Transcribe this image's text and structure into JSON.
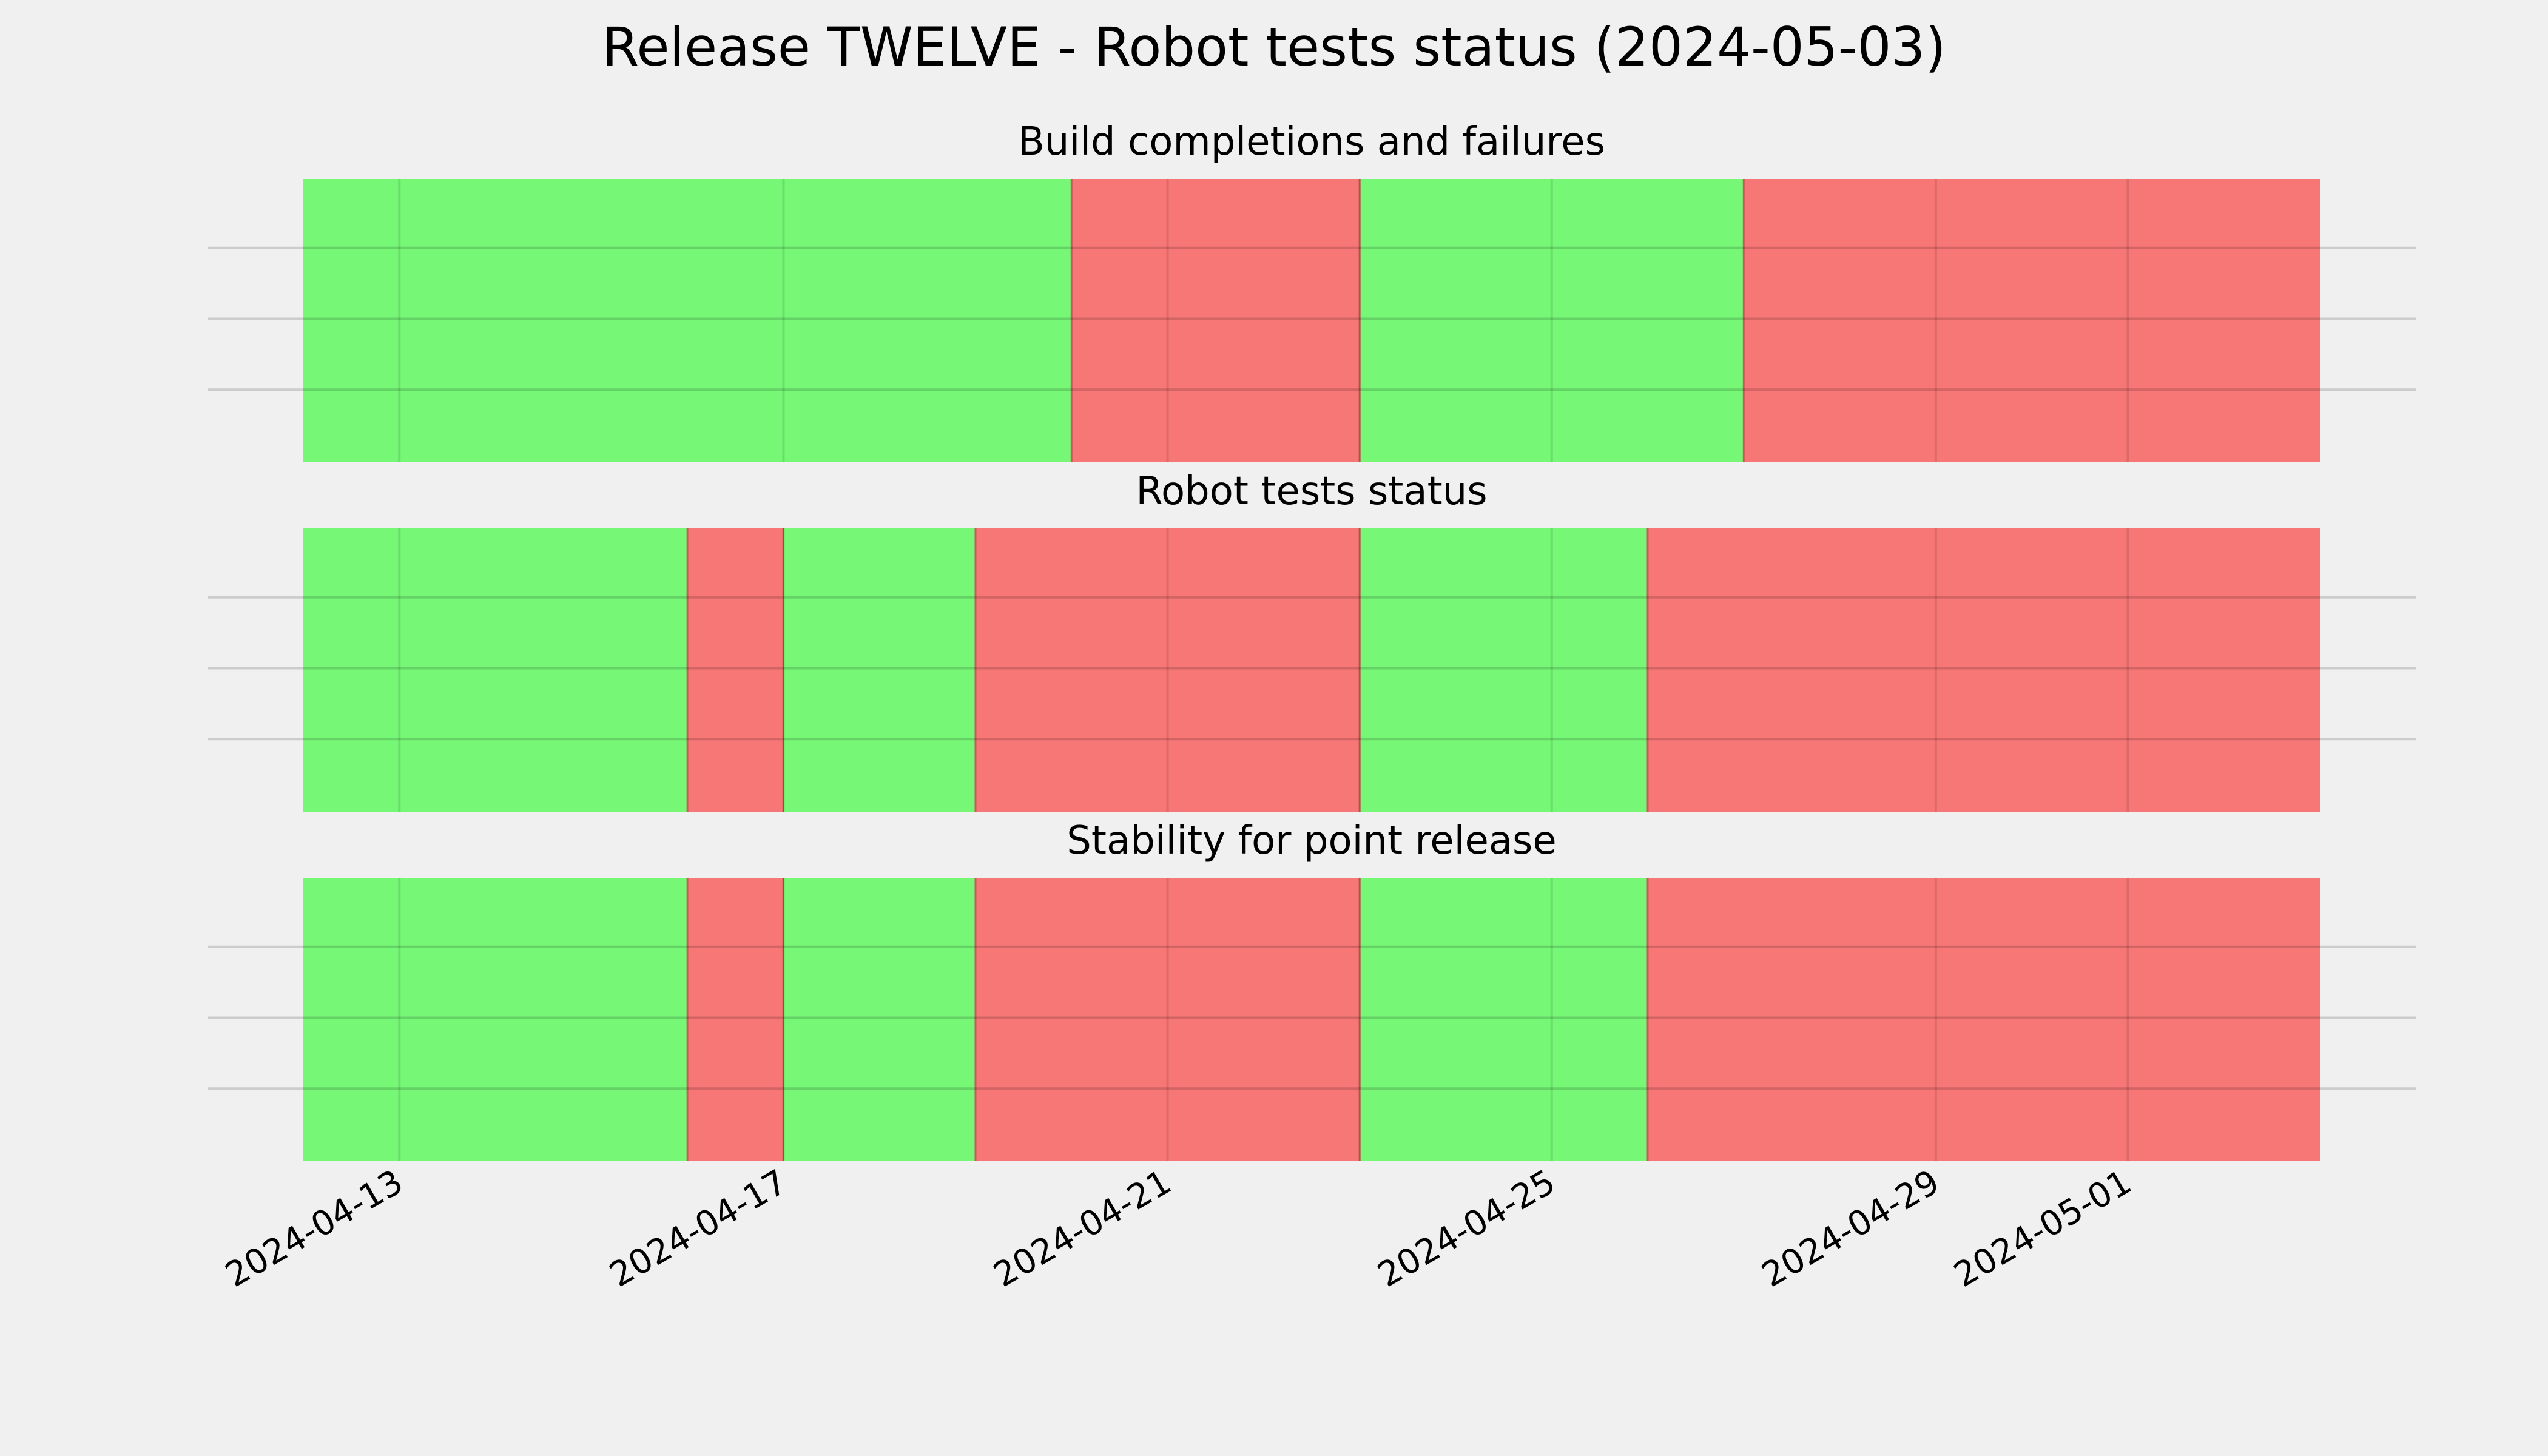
{
  "chart_data": {
    "type": "heatmap",
    "title": "Release TWELVE - Robot tests status (2024-05-03)",
    "x_axis": {
      "type": "date",
      "range": [
        "2024-04-12",
        "2024-05-03"
      ],
      "tick_labels": [
        "2024-04-13",
        "2024-04-17",
        "2024-04-21",
        "2024-04-25",
        "2024-04-29",
        "2024-05-01"
      ]
    },
    "colors": {
      "pass": "#76f776",
      "fail": "#f77676",
      "background": "#f0f0f0"
    },
    "panels": [
      {
        "title": "Build completions and failures",
        "segments": [
          {
            "start": "2024-04-12",
            "end": "2024-04-20",
            "status": "pass"
          },
          {
            "start": "2024-04-20",
            "end": "2024-04-23",
            "status": "fail"
          },
          {
            "start": "2024-04-23",
            "end": "2024-04-27",
            "status": "pass"
          },
          {
            "start": "2024-04-27",
            "end": "2024-05-03",
            "status": "fail"
          }
        ]
      },
      {
        "title": "Robot tests status",
        "segments": [
          {
            "start": "2024-04-12",
            "end": "2024-04-16",
            "status": "pass"
          },
          {
            "start": "2024-04-16",
            "end": "2024-04-17",
            "status": "fail"
          },
          {
            "start": "2024-04-17",
            "end": "2024-04-19",
            "status": "pass"
          },
          {
            "start": "2024-04-19",
            "end": "2024-04-23",
            "status": "fail"
          },
          {
            "start": "2024-04-23",
            "end": "2024-04-26",
            "status": "pass"
          },
          {
            "start": "2024-04-26",
            "end": "2024-05-03",
            "status": "fail"
          }
        ]
      },
      {
        "title": "Stability for point release",
        "segments": [
          {
            "start": "2024-04-12",
            "end": "2024-04-16",
            "status": "pass"
          },
          {
            "start": "2024-04-16",
            "end": "2024-04-17",
            "status": "fail"
          },
          {
            "start": "2024-04-17",
            "end": "2024-04-19",
            "status": "pass"
          },
          {
            "start": "2024-04-19",
            "end": "2024-04-23",
            "status": "fail"
          },
          {
            "start": "2024-04-23",
            "end": "2024-04-26",
            "status": "pass"
          },
          {
            "start": "2024-04-26",
            "end": "2024-05-03",
            "status": "fail"
          }
        ]
      }
    ],
    "grid": true,
    "legend": "none"
  }
}
